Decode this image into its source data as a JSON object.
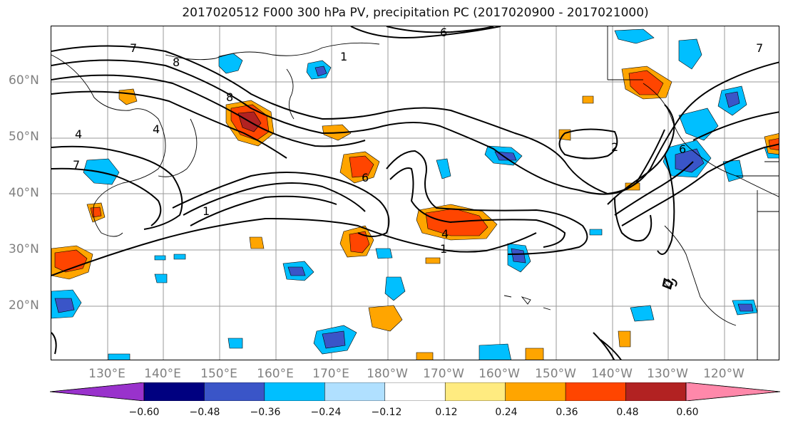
{
  "title": "2017020512 F000 300 hPa PV, precipitation PC (2017020900 - 2017021000)",
  "lat_labels": [
    "60°N",
    "50°N",
    "40°N",
    "30°N",
    "20°N"
  ],
  "lon_labels": [
    "130°E",
    "140°E",
    "150°E",
    "160°E",
    "170°E",
    "180°W",
    "170°W",
    "160°W",
    "150°W",
    "140°W",
    "130°W",
    "120°W"
  ],
  "colorbar": {
    "colors": [
      "#9932CC",
      "#000080",
      "#3A55C8",
      "#00BFFF",
      "#B0E0FF",
      "#FFFFFF",
      "#FFEB80",
      "#FFA500",
      "#FF4500",
      "#B22222",
      "#FF88AA"
    ],
    "ticks": [
      "−0.60",
      "−0.48",
      "−0.36",
      "−0.24",
      "−0.12",
      "0.12",
      "0.24",
      "0.36",
      "0.48",
      "0.60"
    ]
  },
  "contour_labels": [
    "1",
    "2",
    "4",
    "6",
    "7",
    "8"
  ]
}
